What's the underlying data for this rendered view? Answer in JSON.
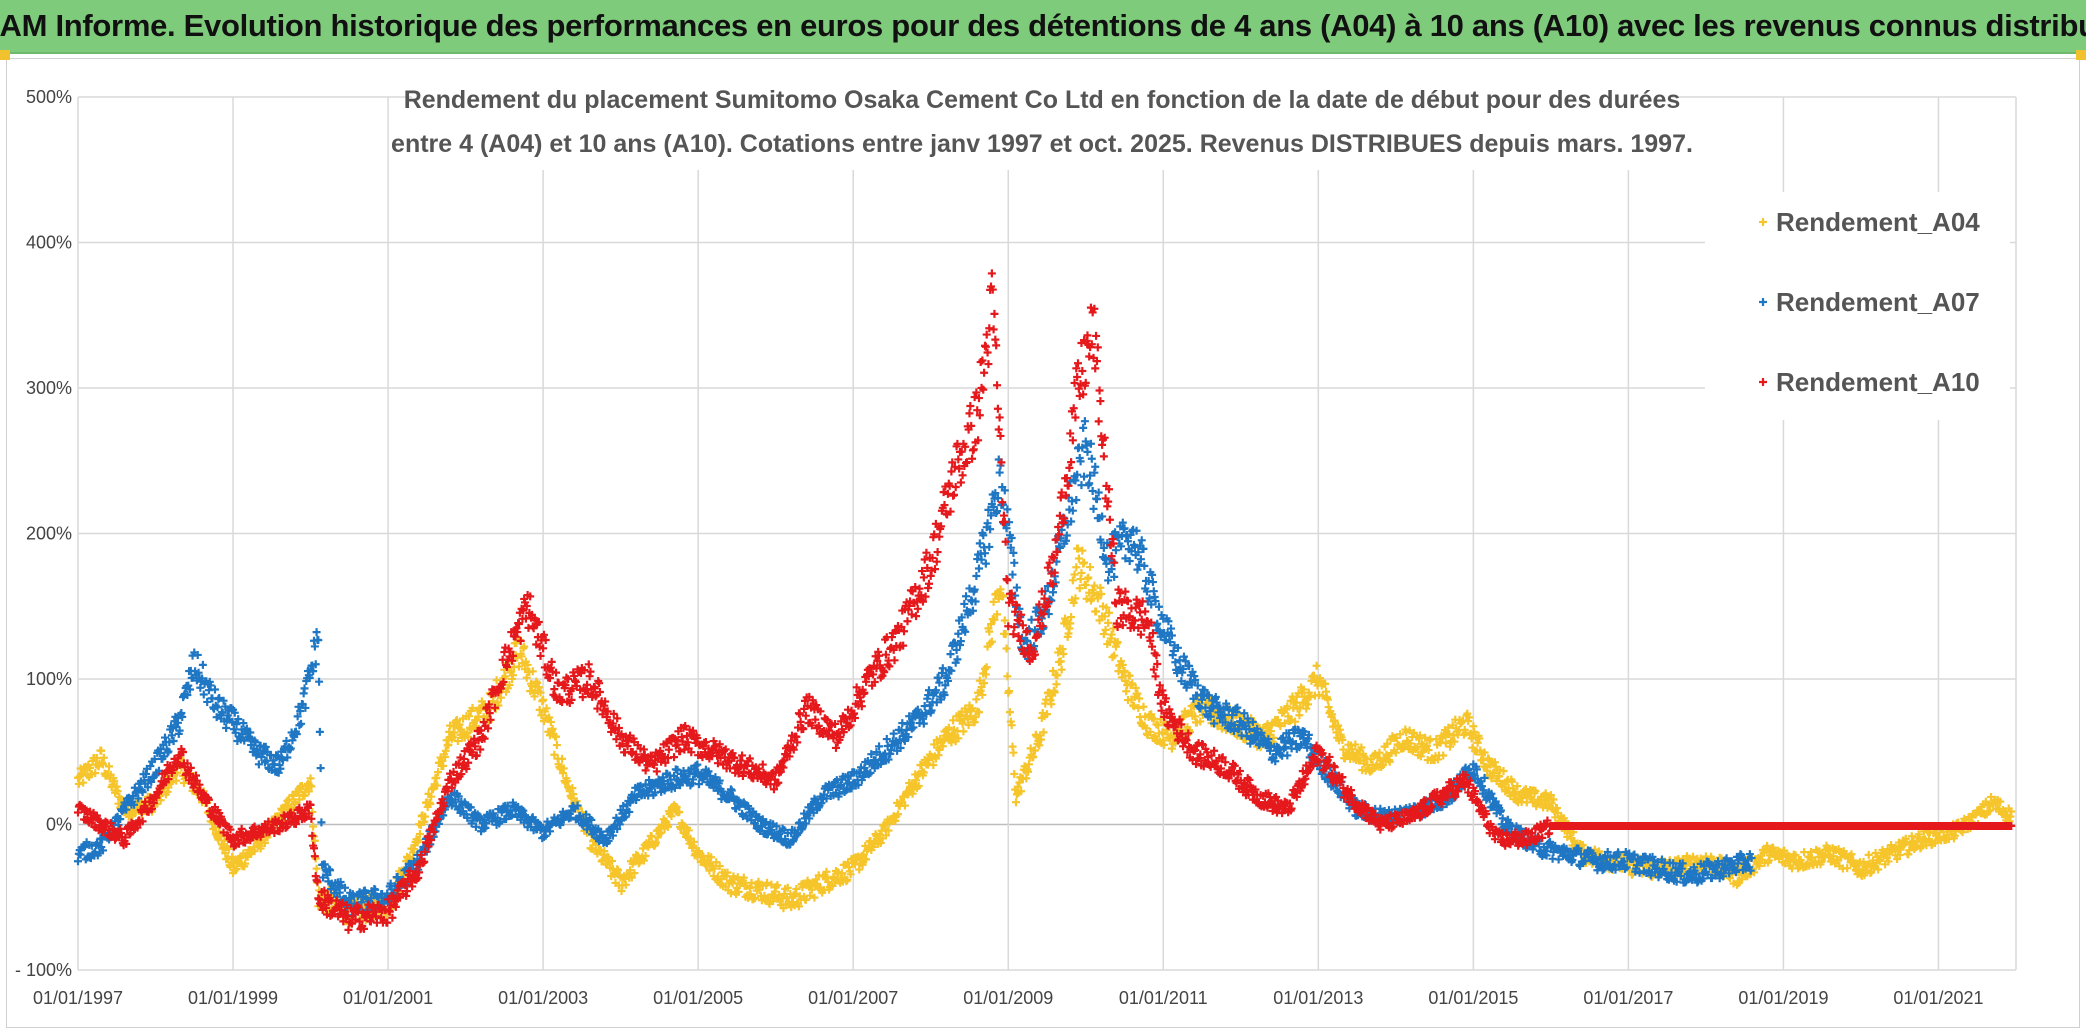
{
  "header": {
    "title": "ADAM Informe. Evolution historique des performances en euros pour des détentions de 4 ans (A04) à 10 ans (A10) avec les revenus connus distribués"
  },
  "colors": {
    "header_bg": "#7fcb7c",
    "A04": "#f5c52b",
    "A07": "#1f77c4",
    "A10": "#e5191c",
    "grid": "#d9d9d9"
  },
  "chart_data": {
    "type": "scatter",
    "title_lines": [
      "Rendement du placement Sumitomo Osaka Cement Co Ltd en fonction de la date de début pour des durées",
      "entre 4 (A04) et 10 ans (A10). Cotations entre janv 1997 et oct. 2025. Revenus DISTRIBUES depuis mars. 1997."
    ],
    "y_ticks": [
      "500%",
      "400%",
      "300%",
      "200%",
      "100%",
      "0%",
      "- 100%"
    ],
    "y_tick_values": [
      500,
      400,
      300,
      200,
      100,
      0,
      -100
    ],
    "x_ticks": [
      "01/01/1997",
      "01/01/1999",
      "01/01/2001",
      "01/01/2003",
      "01/01/2005",
      "01/01/2007",
      "01/01/2009",
      "01/01/2011",
      "01/01/2013",
      "01/01/2015",
      "01/01/2017",
      "01/01/2019",
      "01/01/2021"
    ],
    "x_tick_years": [
      1997,
      1999,
      2001,
      2003,
      2005,
      2007,
      2009,
      2011,
      2013,
      2015,
      2017,
      2019,
      2021
    ],
    "xlim": [
      1997,
      2022
    ],
    "ylim": [
      -100,
      500
    ],
    "marker": "+",
    "legend_position": "top-right",
    "series": [
      {
        "name": "Rendement_A04",
        "color": "#f5c52b",
        "points": [
          [
            1997.0,
            30
          ],
          [
            1997.3,
            45
          ],
          [
            1997.6,
            10
          ],
          [
            1998.0,
            15
          ],
          [
            1998.3,
            40
          ],
          [
            1998.6,
            20
          ],
          [
            1999.0,
            -30
          ],
          [
            1999.3,
            -15
          ],
          [
            1999.6,
            5
          ],
          [
            2000.0,
            30
          ],
          [
            2000.1,
            -50
          ],
          [
            2000.5,
            -60
          ],
          [
            2001.0,
            -55
          ],
          [
            2001.3,
            -20
          ],
          [
            2001.8,
            60
          ],
          [
            2002.3,
            80
          ],
          [
            2002.7,
            120
          ],
          [
            2003.0,
            80
          ],
          [
            2003.3,
            30
          ],
          [
            2003.6,
            -10
          ],
          [
            2004.0,
            -40
          ],
          [
            2004.3,
            -20
          ],
          [
            2004.7,
            10
          ],
          [
            2005.0,
            -20
          ],
          [
            2005.4,
            -40
          ],
          [
            2005.8,
            -45
          ],
          [
            2006.2,
            -52
          ],
          [
            2006.6,
            -40
          ],
          [
            2007.0,
            -30
          ],
          [
            2007.4,
            -5
          ],
          [
            2007.8,
            30
          ],
          [
            2008.2,
            60
          ],
          [
            2008.6,
            80
          ],
          [
            2008.9,
            170
          ],
          [
            2009.1,
            20
          ],
          [
            2009.4,
            60
          ],
          [
            2009.7,
            120
          ],
          [
            2009.9,
            180
          ],
          [
            2010.2,
            150
          ],
          [
            2010.5,
            100
          ],
          [
            2010.8,
            70
          ],
          [
            2011.1,
            60
          ],
          [
            2011.5,
            80
          ],
          [
            2011.9,
            70
          ],
          [
            2012.3,
            60
          ],
          [
            2012.7,
            80
          ],
          [
            2013.0,
            100
          ],
          [
            2013.3,
            55
          ],
          [
            2013.7,
            40
          ],
          [
            2014.1,
            60
          ],
          [
            2014.5,
            50
          ],
          [
            2014.9,
            70
          ],
          [
            2015.2,
            40
          ],
          [
            2015.6,
            20
          ],
          [
            2016.0,
            15
          ],
          [
            2016.4,
            -20
          ],
          [
            2016.8,
            -25
          ],
          [
            2017.2,
            -30
          ],
          [
            2017.6,
            -30
          ],
          [
            2018.0,
            -25
          ],
          [
            2018.4,
            -35
          ],
          [
            2018.8,
            -20
          ],
          [
            2019.2,
            -25
          ],
          [
            2019.6,
            -20
          ],
          [
            2020.0,
            -30
          ],
          [
            2020.4,
            -20
          ],
          [
            2020.8,
            -10
          ],
          [
            2021.2,
            -5
          ],
          [
            2021.5,
            5
          ],
          [
            2021.7,
            15
          ],
          [
            2021.95,
            5
          ]
        ]
      },
      {
        "name": "Rendement_A07",
        "color": "#1f77c4",
        "points": [
          [
            1997.0,
            -20
          ],
          [
            1997.3,
            -15
          ],
          [
            1997.6,
            10
          ],
          [
            1998.0,
            40
          ],
          [
            1998.3,
            70
          ],
          [
            1998.5,
            110
          ],
          [
            1998.8,
            80
          ],
          [
            1999.0,
            70
          ],
          [
            1999.3,
            50
          ],
          [
            1999.6,
            40
          ],
          [
            1999.9,
            80
          ],
          [
            2000.1,
            130
          ],
          [
            2000.15,
            -30
          ],
          [
            2000.5,
            -55
          ],
          [
            2001.0,
            -50
          ],
          [
            2001.4,
            -25
          ],
          [
            2001.8,
            20
          ],
          [
            2002.2,
            0
          ],
          [
            2002.6,
            10
          ],
          [
            2003.0,
            -5
          ],
          [
            2003.4,
            10
          ],
          [
            2003.8,
            -10
          ],
          [
            2004.2,
            20
          ],
          [
            2004.6,
            30
          ],
          [
            2005.0,
            35
          ],
          [
            2005.4,
            20
          ],
          [
            2005.8,
            0
          ],
          [
            2006.2,
            -10
          ],
          [
            2006.6,
            20
          ],
          [
            2007.0,
            30
          ],
          [
            2007.4,
            50
          ],
          [
            2007.8,
            70
          ],
          [
            2008.2,
            100
          ],
          [
            2008.6,
            170
          ],
          [
            2008.9,
            240
          ],
          [
            2009.2,
            120
          ],
          [
            2009.5,
            150
          ],
          [
            2009.8,
            220
          ],
          [
            2010.0,
            260
          ],
          [
            2010.3,
            180
          ],
          [
            2010.6,
            200
          ],
          [
            2010.9,
            150
          ],
          [
            2011.2,
            110
          ],
          [
            2011.6,
            80
          ],
          [
            2012.0,
            70
          ],
          [
            2012.4,
            50
          ],
          [
            2012.8,
            60
          ],
          [
            2013.2,
            30
          ],
          [
            2013.5,
            10
          ],
          [
            2013.9,
            5
          ],
          [
            2014.3,
            10
          ],
          [
            2014.7,
            20
          ],
          [
            2015.0,
            40
          ],
          [
            2015.4,
            0
          ],
          [
            2015.8,
            -15
          ],
          [
            2016.2,
            -20
          ],
          [
            2016.6,
            -25
          ],
          [
            2017.0,
            -25
          ],
          [
            2017.4,
            -30
          ],
          [
            2017.8,
            -35
          ],
          [
            2018.2,
            -30
          ],
          [
            2018.6,
            -25
          ]
        ]
      },
      {
        "name": "Rendement_A10",
        "color": "#e5191c",
        "points": [
          [
            1997.0,
            10
          ],
          [
            1997.3,
            0
          ],
          [
            1997.6,
            -10
          ],
          [
            1998.0,
            20
          ],
          [
            1998.3,
            50
          ],
          [
            1998.6,
            20
          ],
          [
            1999.0,
            -10
          ],
          [
            1999.3,
            -5
          ],
          [
            1999.6,
            0
          ],
          [
            2000.0,
            10
          ],
          [
            2000.1,
            -50
          ],
          [
            2000.5,
            -65
          ],
          [
            2001.0,
            -60
          ],
          [
            2001.4,
            -30
          ],
          [
            2001.8,
            30
          ],
          [
            2002.2,
            60
          ],
          [
            2002.5,
            110
          ],
          [
            2002.8,
            150
          ],
          [
            2003.2,
            90
          ],
          [
            2003.6,
            100
          ],
          [
            2004.0,
            60
          ],
          [
            2004.4,
            40
          ],
          [
            2004.8,
            60
          ],
          [
            2005.2,
            50
          ],
          [
            2005.6,
            40
          ],
          [
            2006.0,
            30
          ],
          [
            2006.4,
            80
          ],
          [
            2006.8,
            60
          ],
          [
            2007.2,
            100
          ],
          [
            2007.6,
            130
          ],
          [
            2008.0,
            180
          ],
          [
            2008.3,
            240
          ],
          [
            2008.6,
            280
          ],
          [
            2008.8,
            360
          ],
          [
            2009.0,
            150
          ],
          [
            2009.3,
            120
          ],
          [
            2009.6,
            180
          ],
          [
            2009.9,
            300
          ],
          [
            2010.1,
            340
          ],
          [
            2010.4,
            150
          ],
          [
            2010.8,
            140
          ],
          [
            2011.0,
            80
          ],
          [
            2011.4,
            50
          ],
          [
            2011.8,
            40
          ],
          [
            2012.2,
            20
          ],
          [
            2012.6,
            10
          ],
          [
            2013.0,
            50
          ],
          [
            2013.4,
            20
          ],
          [
            2013.8,
            0
          ],
          [
            2014.2,
            5
          ],
          [
            2014.6,
            20
          ],
          [
            2014.9,
            30
          ],
          [
            2015.3,
            -10
          ],
          [
            2015.7,
            -10
          ],
          [
            2016.0,
            -1
          ],
          [
            2017.0,
            -1
          ],
          [
            2018.0,
            -1
          ],
          [
            2019.0,
            -1
          ],
          [
            2020.0,
            -1
          ],
          [
            2021.0,
            -1
          ],
          [
            2021.95,
            -1
          ]
        ]
      }
    ]
  }
}
